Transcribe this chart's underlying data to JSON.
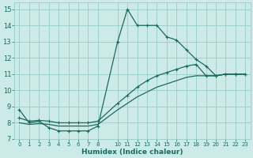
{
  "xlabel": "Humidex (Indice chaleur)",
  "bg_color": "#cceae8",
  "grid_color": "#99cccc",
  "line_color": "#1a6b5a",
  "xlim": [
    -0.5,
    23.5
  ],
  "ylim": [
    7,
    15.4
  ],
  "yticks": [
    7,
    8,
    9,
    10,
    11,
    12,
    13,
    14,
    15
  ],
  "xtick_vals": [
    0,
    1,
    2,
    3,
    4,
    5,
    6,
    7,
    8,
    10,
    11,
    12,
    13,
    14,
    15,
    16,
    17,
    18,
    19,
    20,
    21,
    22,
    23
  ],
  "xtick_labels": [
    "0",
    "1",
    "2",
    "3",
    "4",
    "5",
    "6",
    "7",
    "8",
    "10",
    "11",
    "12",
    "13",
    "14",
    "15",
    "16",
    "17",
    "18",
    "19",
    "20",
    "21",
    "22",
    "23"
  ],
  "curve1_x": [
    0,
    1,
    2,
    3,
    4,
    5,
    6,
    7,
    8,
    10,
    11,
    12,
    13,
    14,
    15,
    16,
    17,
    18,
    19,
    20,
    21,
    22,
    23
  ],
  "curve1_y": [
    8.8,
    8.0,
    8.1,
    7.7,
    7.5,
    7.5,
    7.5,
    7.5,
    7.8,
    13.0,
    15.0,
    14.0,
    14.0,
    14.0,
    13.3,
    13.1,
    12.5,
    11.9,
    11.5,
    10.9,
    11.0,
    11.0,
    11.0
  ],
  "curve2_x": [
    0,
    1,
    2,
    3,
    4,
    5,
    6,
    7,
    8,
    10,
    11,
    12,
    13,
    14,
    15,
    16,
    17,
    18,
    19,
    20,
    21,
    22,
    23
  ],
  "curve2_y": [
    8.3,
    8.1,
    8.15,
    8.1,
    8.0,
    8.0,
    8.0,
    8.0,
    8.1,
    9.2,
    9.7,
    10.2,
    10.6,
    10.9,
    11.1,
    11.3,
    11.5,
    11.6,
    10.9,
    10.9,
    11.0,
    11.0,
    11.0
  ],
  "curve3_x": [
    0,
    1,
    2,
    3,
    4,
    5,
    6,
    7,
    8,
    10,
    11,
    12,
    13,
    14,
    15,
    16,
    17,
    18,
    19,
    20,
    21,
    22,
    23
  ],
  "curve3_y": [
    8.0,
    7.9,
    7.95,
    7.9,
    7.8,
    7.8,
    7.8,
    7.8,
    7.9,
    8.8,
    9.2,
    9.6,
    9.9,
    10.2,
    10.4,
    10.6,
    10.8,
    10.9,
    10.9,
    10.9,
    11.0,
    11.0,
    11.0
  ]
}
